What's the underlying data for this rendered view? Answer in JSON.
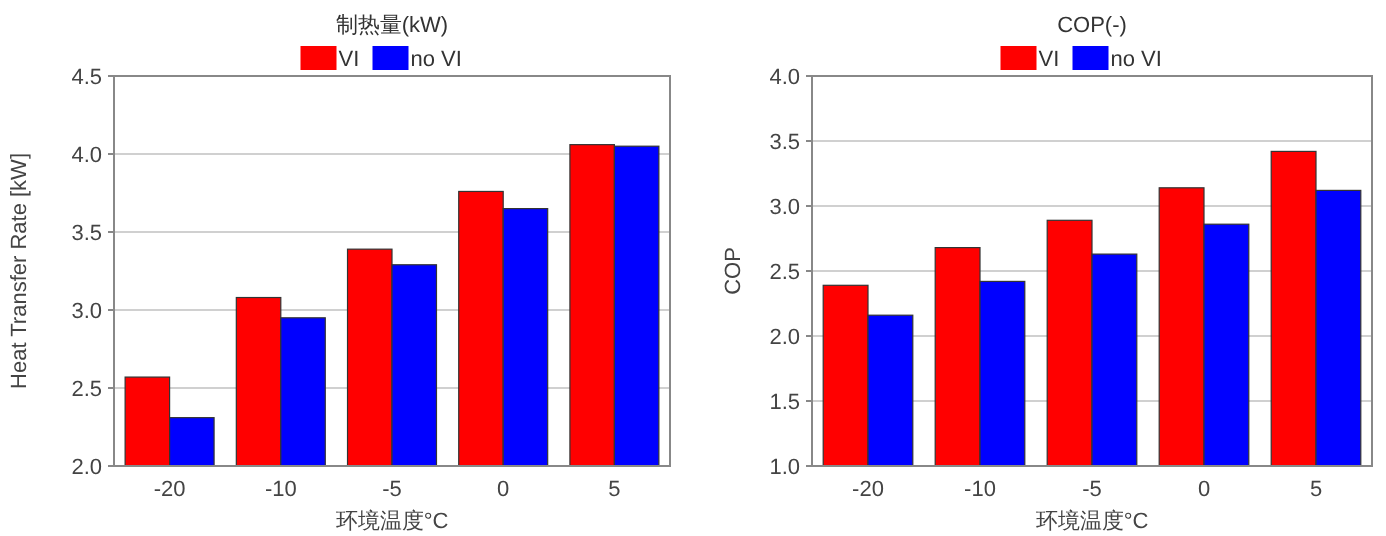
{
  "chart_data": [
    {
      "type": "bar",
      "title": "制热量(kW)",
      "xlabel": "环境温度°C",
      "ylabel": "Heat Transfer Rate [kW]",
      "categories": [
        "-20",
        "-10",
        "-5",
        "0",
        "5"
      ],
      "series": [
        {
          "name": "VI",
          "color": "#ff0000",
          "values": [
            2.57,
            3.08,
            3.39,
            3.76,
            4.06
          ]
        },
        {
          "name": "no VI",
          "color": "#0000ff",
          "values": [
            2.31,
            2.95,
            3.29,
            3.65,
            4.05
          ]
        }
      ],
      "ylim": [
        2.0,
        4.5
      ],
      "yticks": [
        {
          "value": 2.0,
          "label": "2.0"
        },
        {
          "value": 2.5,
          "label": "2.5"
        },
        {
          "value": 3.0,
          "label": "3.0"
        },
        {
          "value": 3.5,
          "label": "3.5"
        },
        {
          "value": 4.0,
          "label": "4.0"
        },
        {
          "value": 4.5,
          "label": "4.5"
        }
      ],
      "grid": "y",
      "legend": "top"
    },
    {
      "type": "bar",
      "title": "COP(-)",
      "xlabel": "环境温度°C",
      "ylabel": "COP",
      "categories": [
        "-20",
        "-10",
        "-5",
        "0",
        "5"
      ],
      "series": [
        {
          "name": "VI",
          "color": "#ff0000",
          "values": [
            2.39,
            2.68,
            2.89,
            3.14,
            3.42
          ]
        },
        {
          "name": "no VI",
          "color": "#0000ff",
          "values": [
            2.16,
            2.42,
            2.63,
            2.86,
            3.12
          ]
        }
      ],
      "ylim": [
        1.0,
        4.0
      ],
      "yticks": [
        {
          "value": 1.0,
          "label": "1.0"
        },
        {
          "value": 1.5,
          "label": "1.5"
        },
        {
          "value": 2.0,
          "label": "2.0"
        },
        {
          "value": 2.5,
          "label": "2.5"
        },
        {
          "value": 3.0,
          "label": "3.0"
        },
        {
          "value": 3.5,
          "label": "3.5"
        },
        {
          "value": 4.0,
          "label": "4.0"
        }
      ],
      "grid": "y",
      "legend": "top"
    }
  ]
}
